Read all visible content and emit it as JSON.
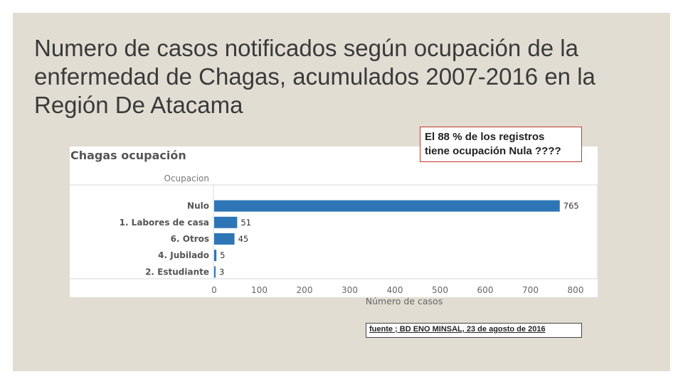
{
  "slide": {
    "title": "Numero de casos  notificados según ocupación  de la\nenfermedad de Chagas, acumulados 2007-2016 en la\nRegión De Atacama",
    "callout": "El 88 % de los registros\ntiene ocupación Nula ????",
    "source": "fuente ; BD ENO MINSAL, 23 de agosto de 2016",
    "background_color": "#e2ddd3"
  },
  "chart_data": {
    "type": "bar",
    "orientation": "horizontal",
    "title": "Chagas ocupación",
    "category_header": "Ocupacion",
    "categories": [
      "Nulo",
      "1. Labores de casa",
      "6. Otros",
      "4. Jubilado",
      "2. Estudiante"
    ],
    "values": [
      765,
      51,
      45,
      5,
      3
    ],
    "xlabel": "Número de casos",
    "xlim": [
      0,
      800
    ],
    "xticks": [
      0,
      100,
      200,
      300,
      400,
      500,
      600,
      700,
      800
    ],
    "bar_color": "#2e75b6",
    "grid": false,
    "data_labels": true
  }
}
